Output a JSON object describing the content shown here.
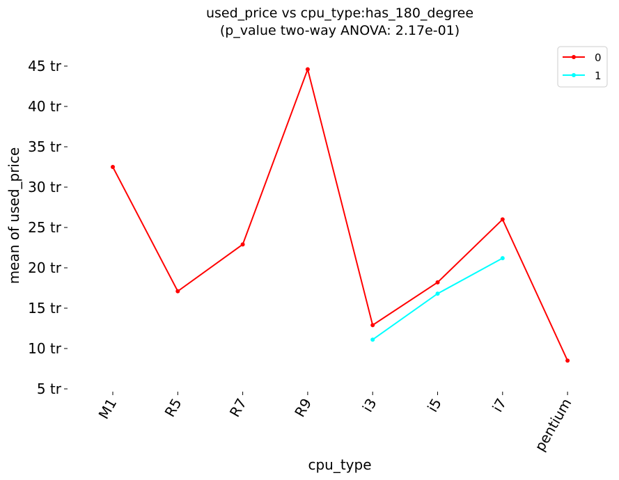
{
  "chart_data": {
    "type": "line",
    "title": "used_price vs cpu_type:has_180_degree",
    "subtitle": "(p_value two-way ANOVA: 2.17e-01)",
    "xlabel": "cpu_type",
    "ylabel": "mean of used_price",
    "categories": [
      "M1",
      "R5",
      "R7",
      "R9",
      "i3",
      "i5",
      "i7",
      "pentium"
    ],
    "y_ticks": [
      5,
      10,
      15,
      20,
      25,
      30,
      35,
      40,
      45
    ],
    "y_tick_suffix": " tr",
    "ylim": [
      5,
      45
    ],
    "grid": false,
    "legend_position": "top-right",
    "series": [
      {
        "name": "0",
        "color": "#ff0000",
        "values": [
          32.5,
          17.1,
          22.9,
          44.6,
          12.9,
          18.2,
          26.0,
          8.5
        ]
      },
      {
        "name": "1",
        "color": "#00ffff",
        "values": [
          null,
          null,
          null,
          null,
          11.1,
          16.8,
          21.2,
          null
        ]
      }
    ]
  }
}
